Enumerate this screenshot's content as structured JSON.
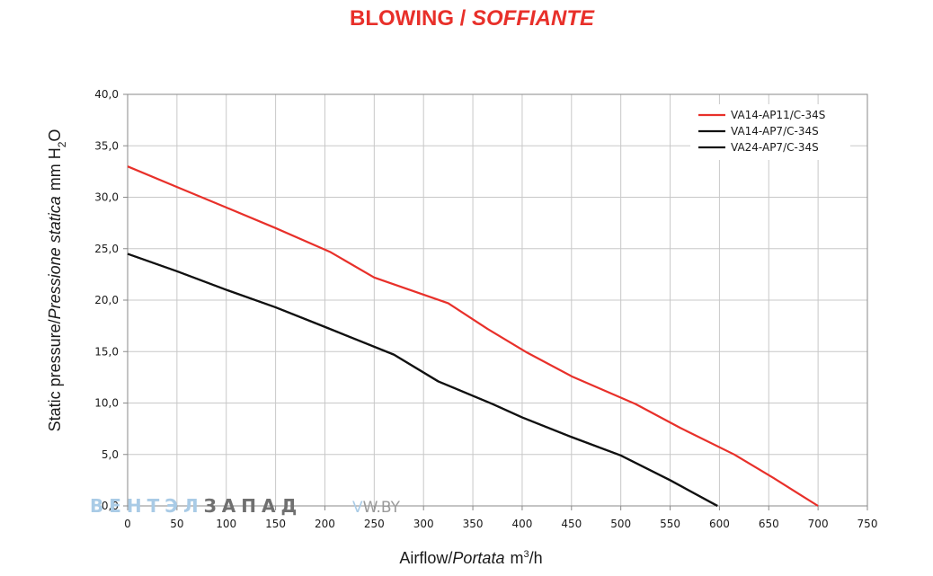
{
  "title": {
    "main": "BLOWING",
    "sep": " / ",
    "italic": "SOFFIANTE"
  },
  "xaxis": {
    "label": "Airflow",
    "label_sep": "/",
    "label_italic": "Portata",
    "unit_pre": "m",
    "unit_sup": "3",
    "unit_post": "/h"
  },
  "yaxis": {
    "label": "Static pressure",
    "label_sep": "/",
    "label_italic": "Pressione statica",
    "unit_pre": "mm  H",
    "unit_sub": "2",
    "unit_post": "O"
  },
  "watermark": {
    "part1": "ВЕНТЭЛ",
    "part2": "ЗАПАД",
    "part3": "W.BY"
  },
  "colors": {
    "red": "#e8302a",
    "black": "#111111",
    "title": "#e8302a",
    "grid": "#c8c8c8",
    "wm_blue": "#a9cbe6",
    "wm_dark": "#707070"
  },
  "chart_data": {
    "type": "line",
    "title": "BLOWING / SOFFIANTE",
    "xlabel": "Airflow / Portata m3/h",
    "ylabel": "Static pressure / Pressione statica mm H2O",
    "xlim": [
      0,
      750
    ],
    "ylim": [
      0,
      40
    ],
    "grid": true,
    "legend_position": "top-right",
    "x_ticks": [
      "0",
      "50",
      "100",
      "150",
      "200",
      "250",
      "300",
      "350",
      "400",
      "450",
      "500",
      "550",
      "600",
      "650",
      "700",
      "750"
    ],
    "x_tick_values": [
      0,
      50,
      100,
      150,
      200,
      250,
      300,
      350,
      400,
      450,
      500,
      550,
      600,
      650,
      700,
      750
    ],
    "y_ticks": [
      "0,0",
      "5,0",
      "10,0",
      "15,0",
      "20,0",
      "25,0",
      "30,0",
      "35,0",
      "40,0"
    ],
    "y_tick_values": [
      0,
      5,
      10,
      15,
      20,
      25,
      30,
      35,
      40
    ],
    "series": [
      {
        "name": "VA14-AP11/C-34S",
        "color": "#e8302a",
        "x": [
          0,
          50,
          100,
          150,
          205,
          250,
          325,
          365,
          405,
          450,
          515,
          560,
          615,
          655,
          700
        ],
        "y": [
          33.0,
          31.0,
          29.0,
          27.0,
          24.7,
          22.2,
          19.7,
          17.2,
          14.9,
          12.6,
          9.9,
          7.6,
          5.0,
          2.7,
          0.0
        ]
      },
      {
        "name": "VA14-AP7/C-34S",
        "color": "#111111",
        "x": [
          0,
          50,
          100,
          150,
          200,
          270,
          315,
          370,
          400,
          450,
          500,
          550,
          598
        ],
        "y": [
          24.5,
          22.8,
          21.0,
          19.3,
          17.4,
          14.7,
          12.1,
          9.9,
          8.6,
          6.7,
          4.9,
          2.5,
          0.0
        ]
      },
      {
        "name": "VA24-AP7/C-34S",
        "color": "#111111",
        "x": [
          0,
          50,
          100,
          150,
          200,
          270,
          315,
          370,
          400,
          450,
          500,
          550,
          598
        ],
        "y": [
          24.5,
          22.8,
          21.0,
          19.3,
          17.4,
          14.7,
          12.1,
          9.9,
          8.6,
          6.7,
          4.9,
          2.5,
          0.0
        ]
      }
    ]
  }
}
